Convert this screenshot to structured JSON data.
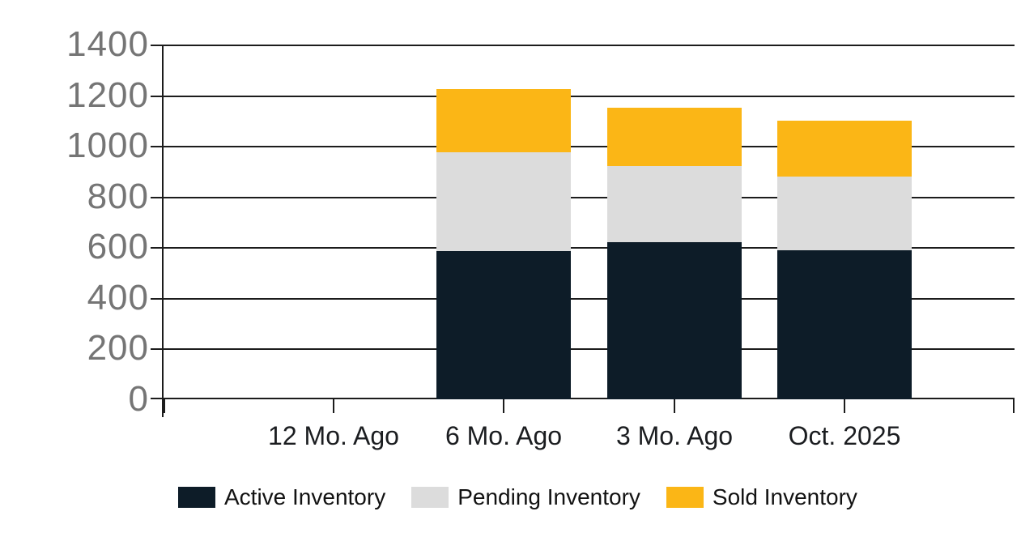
{
  "chart_data": {
    "type": "bar",
    "stacked": true,
    "title": "",
    "xlabel": "",
    "ylabel": "",
    "categories": [
      "12 Mo. Ago",
      "6 Mo. Ago",
      "3 Mo. Ago",
      "Oct. 2025"
    ],
    "series": [
      {
        "name": "Active Inventory",
        "color": "#0d1c28",
        "values": [
          0,
          585,
          620,
          590
        ]
      },
      {
        "name": "Pending Inventory",
        "color": "#dcdcdc",
        "values": [
          0,
          390,
          300,
          290
        ]
      },
      {
        "name": "Sold Inventory",
        "color": "#fbb616",
        "values": [
          0,
          250,
          230,
          220
        ]
      }
    ],
    "totals": [
      0,
      1225,
      1150,
      1100
    ],
    "y_ticks": [
      0,
      200,
      400,
      600,
      800,
      1000,
      1200,
      1400
    ],
    "ylim": [
      0,
      1400
    ],
    "grid": true,
    "legend_position": "bottom",
    "colors": {
      "grid_line": "#1c1c1c",
      "y_label_text": "#757575",
      "x_label_text": "#1b1d20",
      "legend_text": "#121212",
      "background": "#ffffff"
    }
  }
}
